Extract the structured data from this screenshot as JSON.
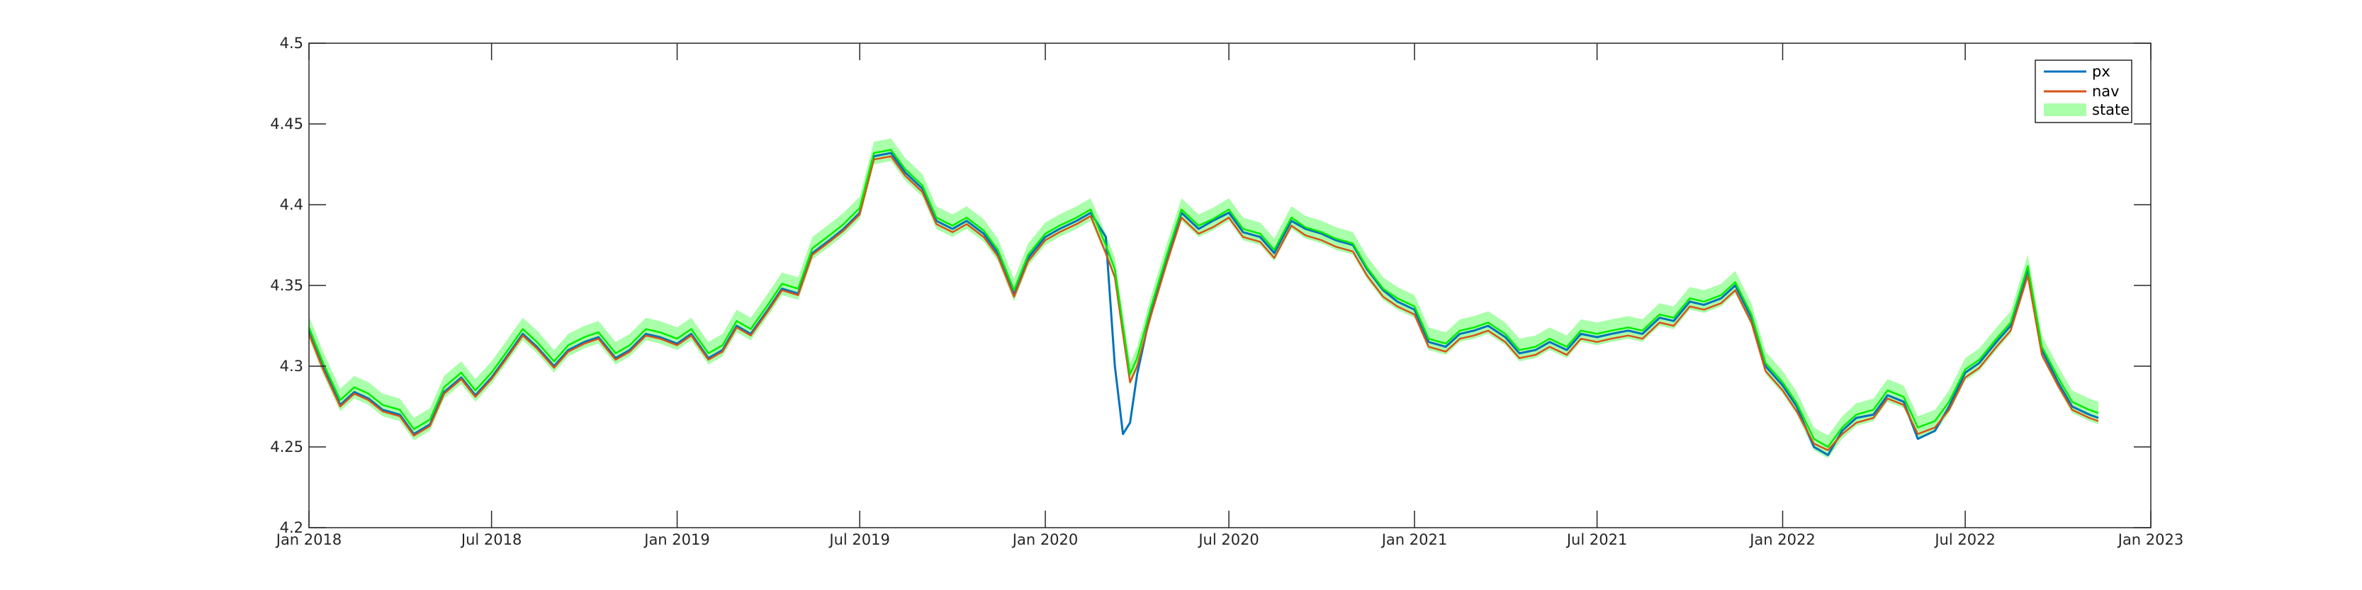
{
  "chart_data": {
    "type": "line",
    "title": "",
    "xlabel": "",
    "ylabel": "",
    "xlim": [
      "2018-01-01",
      "2023-01-01"
    ],
    "ylim": [
      4.2,
      4.5
    ],
    "grid": false,
    "legend_position": "top-right",
    "y_ticks": [
      "4.2",
      "4.25",
      "4.3",
      "4.35",
      "4.4",
      "4.45",
      "4.5"
    ],
    "x_ticks": [
      {
        "date": "2018-01-01",
        "label": "Jan 2018"
      },
      {
        "date": "2018-07-01",
        "label": "Jul 2018"
      },
      {
        "date": "2019-01-01",
        "label": "Jan 2019"
      },
      {
        "date": "2019-07-01",
        "label": "Jul 2019"
      },
      {
        "date": "2020-01-01",
        "label": "Jan 2020"
      },
      {
        "date": "2020-07-01",
        "label": "Jul 2020"
      },
      {
        "date": "2021-01-01",
        "label": "Jan 2021"
      },
      {
        "date": "2021-07-01",
        "label": "Jul 2021"
      },
      {
        "date": "2022-01-01",
        "label": "Jan 2022"
      },
      {
        "date": "2022-07-01",
        "label": "Jul 2022"
      },
      {
        "date": "2023-01-01",
        "label": "Jan 2023"
      }
    ],
    "colors": {
      "px": "#0072bd",
      "nav": "#d95319",
      "state": "#00ee00",
      "state_band": "#aaffaa"
    },
    "x": [
      "2018-01-01",
      "2018-01-15",
      "2018-02-01",
      "2018-02-15",
      "2018-03-01",
      "2018-03-15",
      "2018-04-01",
      "2018-04-15",
      "2018-05-01",
      "2018-05-15",
      "2018-06-01",
      "2018-06-15",
      "2018-07-01",
      "2018-07-15",
      "2018-08-01",
      "2018-08-15",
      "2018-09-01",
      "2018-09-15",
      "2018-10-01",
      "2018-10-15",
      "2018-11-01",
      "2018-11-15",
      "2018-12-01",
      "2018-12-15",
      "2019-01-01",
      "2019-01-15",
      "2019-02-01",
      "2019-02-15",
      "2019-03-01",
      "2019-03-15",
      "2019-04-01",
      "2019-04-15",
      "2019-05-01",
      "2019-05-15",
      "2019-06-01",
      "2019-06-15",
      "2019-07-01",
      "2019-07-15",
      "2019-08-01",
      "2019-08-15",
      "2019-09-01",
      "2019-09-15",
      "2019-10-01",
      "2019-10-15",
      "2019-11-01",
      "2019-11-15",
      "2019-12-01",
      "2019-12-15",
      "2020-01-01",
      "2020-01-15",
      "2020-02-01",
      "2020-02-15",
      "2020-03-01",
      "2020-03-10",
      "2020-03-18",
      "2020-03-25",
      "2020-04-01",
      "2020-04-15",
      "2020-05-01",
      "2020-05-15",
      "2020-06-01",
      "2020-06-15",
      "2020-07-01",
      "2020-07-15",
      "2020-08-01",
      "2020-08-15",
      "2020-09-01",
      "2020-09-15",
      "2020-10-01",
      "2020-10-15",
      "2020-11-01",
      "2020-11-15",
      "2020-12-01",
      "2020-12-15",
      "2021-01-01",
      "2021-01-15",
      "2021-02-01",
      "2021-02-15",
      "2021-03-01",
      "2021-03-15",
      "2021-04-01",
      "2021-04-15",
      "2021-05-01",
      "2021-05-15",
      "2021-06-01",
      "2021-06-15",
      "2021-07-01",
      "2021-07-15",
      "2021-08-01",
      "2021-08-15",
      "2021-09-01",
      "2021-09-15",
      "2021-10-01",
      "2021-10-15",
      "2021-11-01",
      "2021-11-15",
      "2021-12-01",
      "2021-12-15",
      "2022-01-01",
      "2022-01-15",
      "2022-02-01",
      "2022-02-15",
      "2022-03-01",
      "2022-03-15",
      "2022-04-01",
      "2022-04-15",
      "2022-05-01",
      "2022-05-15",
      "2022-06-01",
      "2022-06-15",
      "2022-07-01",
      "2022-07-15",
      "2022-08-01",
      "2022-08-15",
      "2022-09-01",
      "2022-09-15",
      "2022-10-01",
      "2022-10-15",
      "2022-11-01",
      "2022-11-10"
    ],
    "series": [
      {
        "name": "px",
        "values": [
          4.322,
          4.3,
          4.276,
          4.284,
          4.28,
          4.273,
          4.27,
          4.258,
          4.264,
          4.284,
          4.293,
          4.282,
          4.293,
          4.305,
          4.32,
          4.312,
          4.3,
          4.31,
          4.315,
          4.318,
          4.305,
          4.31,
          4.32,
          4.318,
          4.314,
          4.32,
          4.305,
          4.31,
          4.325,
          4.32,
          4.335,
          4.348,
          4.345,
          4.37,
          4.378,
          4.385,
          4.395,
          4.43,
          4.432,
          4.42,
          4.41,
          4.39,
          4.385,
          4.39,
          4.382,
          4.37,
          4.345,
          4.367,
          4.38,
          4.385,
          4.39,
          4.395,
          4.38,
          4.3,
          4.258,
          4.265,
          4.295,
          4.335,
          4.368,
          4.395,
          4.385,
          4.39,
          4.395,
          4.383,
          4.38,
          4.37,
          4.39,
          4.385,
          4.382,
          4.378,
          4.375,
          4.36,
          4.347,
          4.34,
          4.335,
          4.315,
          4.312,
          4.32,
          4.322,
          4.325,
          4.318,
          4.308,
          4.31,
          4.315,
          4.31,
          4.32,
          4.318,
          4.32,
          4.322,
          4.32,
          4.33,
          4.328,
          4.34,
          4.338,
          4.342,
          4.35,
          4.33,
          4.3,
          4.288,
          4.275,
          4.25,
          4.245,
          4.26,
          4.268,
          4.27,
          4.282,
          4.278,
          4.255,
          4.26,
          4.275,
          4.296,
          4.302,
          4.315,
          4.325,
          4.36,
          4.31,
          4.29,
          4.275,
          4.27,
          4.268
        ]
      },
      {
        "name": "nav",
        "values": [
          4.32,
          4.298,
          4.275,
          4.283,
          4.279,
          4.272,
          4.269,
          4.257,
          4.263,
          4.283,
          4.292,
          4.281,
          4.292,
          4.304,
          4.319,
          4.311,
          4.299,
          4.309,
          4.314,
          4.317,
          4.304,
          4.309,
          4.319,
          4.317,
          4.313,
          4.319,
          4.304,
          4.309,
          4.324,
          4.319,
          4.334,
          4.347,
          4.344,
          4.369,
          4.377,
          4.384,
          4.394,
          4.428,
          4.43,
          4.418,
          4.408,
          4.388,
          4.383,
          4.388,
          4.38,
          4.368,
          4.343,
          4.365,
          4.378,
          4.383,
          4.388,
          4.393,
          4.37,
          4.355,
          4.32,
          4.29,
          4.3,
          4.332,
          4.365,
          4.392,
          4.382,
          4.386,
          4.392,
          4.38,
          4.377,
          4.367,
          4.387,
          4.381,
          4.378,
          4.374,
          4.371,
          4.356,
          4.343,
          4.337,
          4.332,
          4.312,
          4.309,
          4.317,
          4.319,
          4.322,
          4.315,
          4.305,
          4.307,
          4.312,
          4.307,
          4.317,
          4.315,
          4.317,
          4.319,
          4.317,
          4.327,
          4.325,
          4.337,
          4.335,
          4.339,
          4.347,
          4.327,
          4.297,
          4.285,
          4.272,
          4.252,
          4.248,
          4.258,
          4.265,
          4.268,
          4.28,
          4.276,
          4.258,
          4.262,
          4.273,
          4.293,
          4.299,
          4.312,
          4.322,
          4.356,
          4.307,
          4.288,
          4.273,
          4.268,
          4.266
        ]
      },
      {
        "name": "state",
        "values": [
          4.324,
          4.302,
          4.279,
          4.287,
          4.283,
          4.276,
          4.273,
          4.261,
          4.267,
          4.287,
          4.296,
          4.285,
          4.296,
          4.308,
          4.323,
          4.315,
          4.303,
          4.313,
          4.318,
          4.321,
          4.308,
          4.313,
          4.323,
          4.321,
          4.317,
          4.323,
          4.308,
          4.313,
          4.328,
          4.323,
          4.338,
          4.351,
          4.348,
          4.373,
          4.381,
          4.388,
          4.398,
          4.432,
          4.434,
          4.422,
          4.412,
          4.392,
          4.387,
          4.392,
          4.384,
          4.372,
          4.347,
          4.369,
          4.382,
          4.387,
          4.392,
          4.397,
          4.375,
          4.36,
          4.325,
          4.295,
          4.305,
          4.337,
          4.37,
          4.397,
          4.387,
          4.391,
          4.397,
          4.385,
          4.382,
          4.372,
          4.392,
          4.386,
          4.383,
          4.379,
          4.376,
          4.361,
          4.348,
          4.342,
          4.337,
          4.317,
          4.314,
          4.322,
          4.324,
          4.327,
          4.32,
          4.31,
          4.312,
          4.317,
          4.312,
          4.322,
          4.32,
          4.322,
          4.324,
          4.322,
          4.332,
          4.33,
          4.342,
          4.34,
          4.344,
          4.352,
          4.332,
          4.302,
          4.29,
          4.277,
          4.255,
          4.25,
          4.262,
          4.27,
          4.273,
          4.285,
          4.281,
          4.262,
          4.266,
          4.278,
          4.298,
          4.304,
          4.317,
          4.327,
          4.362,
          4.312,
          4.293,
          4.278,
          4.273,
          4.271
        ]
      }
    ],
    "state_band_halfwidth": 0.007
  }
}
